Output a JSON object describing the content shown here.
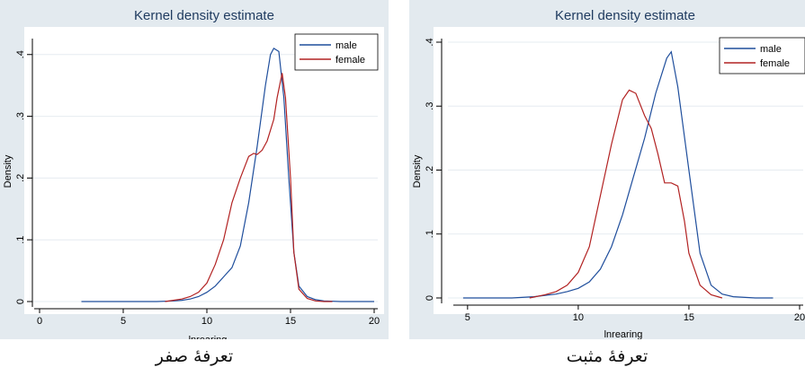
{
  "captions": [
    "تعرفۀ صفر",
    "تعرفۀ مثبت"
  ],
  "chart_data": [
    {
      "type": "line",
      "title": "Kernel density estimate",
      "xlabel": "lnrearing",
      "ylabel": "Density",
      "xlim": [
        0,
        20
      ],
      "ylim": [
        0,
        0.42
      ],
      "xticks": [
        "0",
        "5",
        "10",
        "15",
        "20"
      ],
      "yticks": [
        "0",
        ".1",
        ".2",
        ".3",
        ".4"
      ],
      "grid": true,
      "legend_position": "top-right",
      "series": [
        {
          "name": "male",
          "color": "#1f4e9c",
          "x": [
            2.5,
            5,
            7,
            8,
            8.5,
            9,
            9.5,
            10,
            10.5,
            11,
            11.5,
            12,
            12.5,
            13,
            13.5,
            13.8,
            14,
            14.3,
            14.6,
            14.9,
            15.2,
            15.5,
            16,
            16.5,
            17,
            18,
            19,
            20
          ],
          "y": [
            0,
            0,
            0,
            0.001,
            0.002,
            0.004,
            0.008,
            0.015,
            0.025,
            0.04,
            0.055,
            0.09,
            0.16,
            0.25,
            0.35,
            0.4,
            0.41,
            0.405,
            0.33,
            0.2,
            0.08,
            0.025,
            0.008,
            0.003,
            0.001,
            0,
            0,
            0
          ]
        },
        {
          "name": "female",
          "color": "#b22222",
          "x": [
            7.5,
            8,
            8.5,
            9,
            9.5,
            10,
            10.5,
            11,
            11.5,
            12,
            12.5,
            12.8,
            13,
            13.3,
            13.6,
            14,
            14.2,
            14.5,
            14.7,
            15,
            15.2,
            15.5,
            16,
            16.5,
            17,
            17.5
          ],
          "y": [
            0,
            0.002,
            0.004,
            0.008,
            0.015,
            0.03,
            0.06,
            0.1,
            0.16,
            0.2,
            0.235,
            0.24,
            0.238,
            0.245,
            0.26,
            0.295,
            0.33,
            0.37,
            0.33,
            0.2,
            0.08,
            0.02,
            0.005,
            0.001,
            0,
            0
          ]
        }
      ]
    },
    {
      "type": "line",
      "title": "Kernel density estimate",
      "xlabel": "lnrearing",
      "ylabel": "Density",
      "xlim": [
        4.6,
        20
      ],
      "ylim": [
        0,
        0.4
      ],
      "xticks": [
        "5",
        "10",
        "15",
        "20"
      ],
      "yticks": [
        "0",
        ".1",
        ".2",
        ".3",
        ".4"
      ],
      "grid": true,
      "legend_position": "top-right",
      "series": [
        {
          "name": "male",
          "color": "#1f4e9c",
          "x": [
            4.8,
            6,
            7,
            8,
            8.5,
            9,
            9.5,
            10,
            10.5,
            11,
            11.5,
            12,
            12.5,
            13,
            13.5,
            14,
            14.2,
            14.5,
            15,
            15.5,
            16,
            16.5,
            17,
            18,
            18.8
          ],
          "y": [
            0,
            0,
            0,
            0.002,
            0.004,
            0.006,
            0.01,
            0.015,
            0.025,
            0.045,
            0.08,
            0.13,
            0.19,
            0.25,
            0.32,
            0.375,
            0.385,
            0.33,
            0.2,
            0.07,
            0.02,
            0.006,
            0.002,
            0,
            0
          ]
        },
        {
          "name": "female",
          "color": "#b22222",
          "x": [
            7.8,
            8.5,
            9,
            9.5,
            10,
            10.5,
            11,
            11.5,
            12,
            12.3,
            12.6,
            13,
            13.3,
            13.6,
            13.9,
            14.2,
            14.5,
            14.8,
            15,
            15.5,
            16,
            16.5
          ],
          "y": [
            0,
            0.005,
            0.01,
            0.02,
            0.04,
            0.08,
            0.16,
            0.24,
            0.31,
            0.325,
            0.32,
            0.285,
            0.265,
            0.225,
            0.18,
            0.18,
            0.175,
            0.12,
            0.07,
            0.02,
            0.005,
            0
          ]
        }
      ]
    }
  ]
}
